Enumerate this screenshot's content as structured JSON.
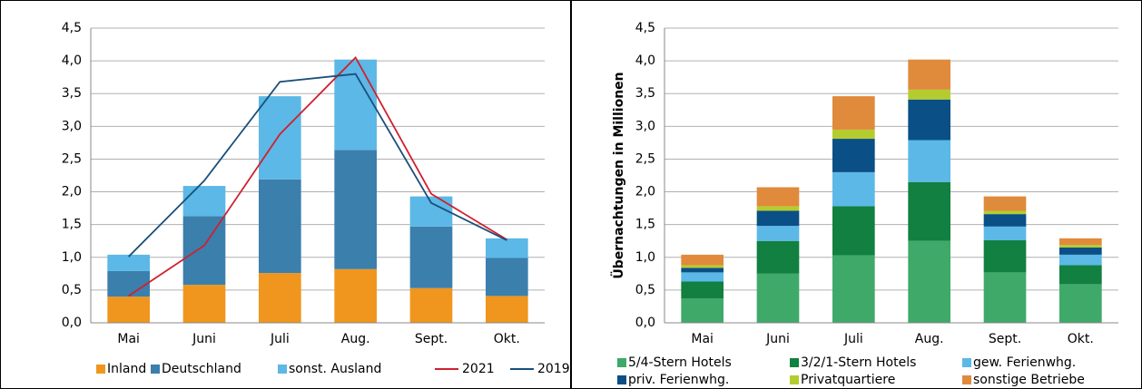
{
  "chart_data": [
    {
      "type": "bar",
      "stacked": true,
      "categories": [
        "Mai",
        "Juni",
        "Juli",
        "Aug.",
        "Sept.",
        "Okt."
      ],
      "ylim": [
        0,
        4.5
      ],
      "yticks": [
        {
          "value": 0,
          "label": "0,0"
        },
        {
          "value": 0.5,
          "label": "0,5"
        },
        {
          "value": 1,
          "label": "1,0"
        },
        {
          "value": 1.5,
          "label": "1,5"
        },
        {
          "value": 2,
          "label": "2,0"
        },
        {
          "value": 2.5,
          "label": "2,5"
        },
        {
          "value": 3,
          "label": "3,0"
        },
        {
          "value": 3.5,
          "label": "3,5"
        },
        {
          "value": 4,
          "label": "4,0"
        },
        {
          "value": 4.5,
          "label": "4,5"
        }
      ],
      "grid": true,
      "series": [
        {
          "name": "Inland",
          "color": "#f0961e",
          "values": [
            0.4,
            0.58,
            0.76,
            0.82,
            0.53,
            0.41
          ]
        },
        {
          "name": "Deutschland",
          "color": "#3b7fad",
          "values": [
            0.39,
            1.05,
            1.43,
            1.82,
            0.94,
            0.58
          ]
        },
        {
          "name": "sonst. Ausland",
          "color": "#5cb8e6",
          "values": [
            0.25,
            0.46,
            1.27,
            1.38,
            0.46,
            0.3
          ]
        },
        {
          "name": "2021",
          "color": "#d0202e",
          "type": "line",
          "values": [
            0.41,
            1.18,
            2.88,
            4.05,
            1.97,
            1.27
          ]
        },
        {
          "name": "2019",
          "color": "#1a4f7a",
          "type": "line",
          "values": [
            1.01,
            2.17,
            3.68,
            3.8,
            1.83,
            1.26
          ]
        }
      ]
    },
    {
      "type": "bar",
      "stacked": true,
      "y_label": "Übernachtungen in Millionen",
      "categories": [
        "Mai",
        "Juni",
        "Juli",
        "Aug.",
        "Sept.",
        "Okt."
      ],
      "ylim": [
        0,
        4.5
      ],
      "yticks": [
        {
          "value": 0,
          "label": "0,0"
        },
        {
          "value": 0.5,
          "label": "0,5"
        },
        {
          "value": 1,
          "label": "1,0"
        },
        {
          "value": 1.5,
          "label": "1,5"
        },
        {
          "value": 2,
          "label": "2,0"
        },
        {
          "value": 2.5,
          "label": "2,5"
        },
        {
          "value": 3,
          "label": "3,0"
        },
        {
          "value": 3.5,
          "label": "3,5"
        },
        {
          "value": 4,
          "label": "4,0"
        },
        {
          "value": 4.5,
          "label": "4,5"
        }
      ],
      "grid": true,
      "series": [
        {
          "name": "5/4-Stern Hotels",
          "color": "#3fa96a",
          "values": [
            0.37,
            0.75,
            1.03,
            1.25,
            0.77,
            0.59
          ]
        },
        {
          "name": "3/2/1-Stern Hotels",
          "color": "#118040",
          "values": [
            0.26,
            0.5,
            0.75,
            0.9,
            0.49,
            0.29
          ]
        },
        {
          "name": "gew. Ferienwhg.",
          "color": "#5cb8e6",
          "values": [
            0.14,
            0.23,
            0.52,
            0.64,
            0.21,
            0.16
          ]
        },
        {
          "name": "priv. Ferienwhg.",
          "color": "#0a4f86",
          "values": [
            0.07,
            0.23,
            0.51,
            0.62,
            0.19,
            0.11
          ]
        },
        {
          "name": "Privatquartiere",
          "color": "#b5cc2f",
          "values": [
            0.04,
            0.07,
            0.14,
            0.15,
            0.05,
            0.04
          ]
        },
        {
          "name": "sonstige Betriebe",
          "color": "#e08a3c",
          "values": [
            0.16,
            0.29,
            0.51,
            0.46,
            0.22,
            0.1
          ]
        }
      ]
    }
  ]
}
